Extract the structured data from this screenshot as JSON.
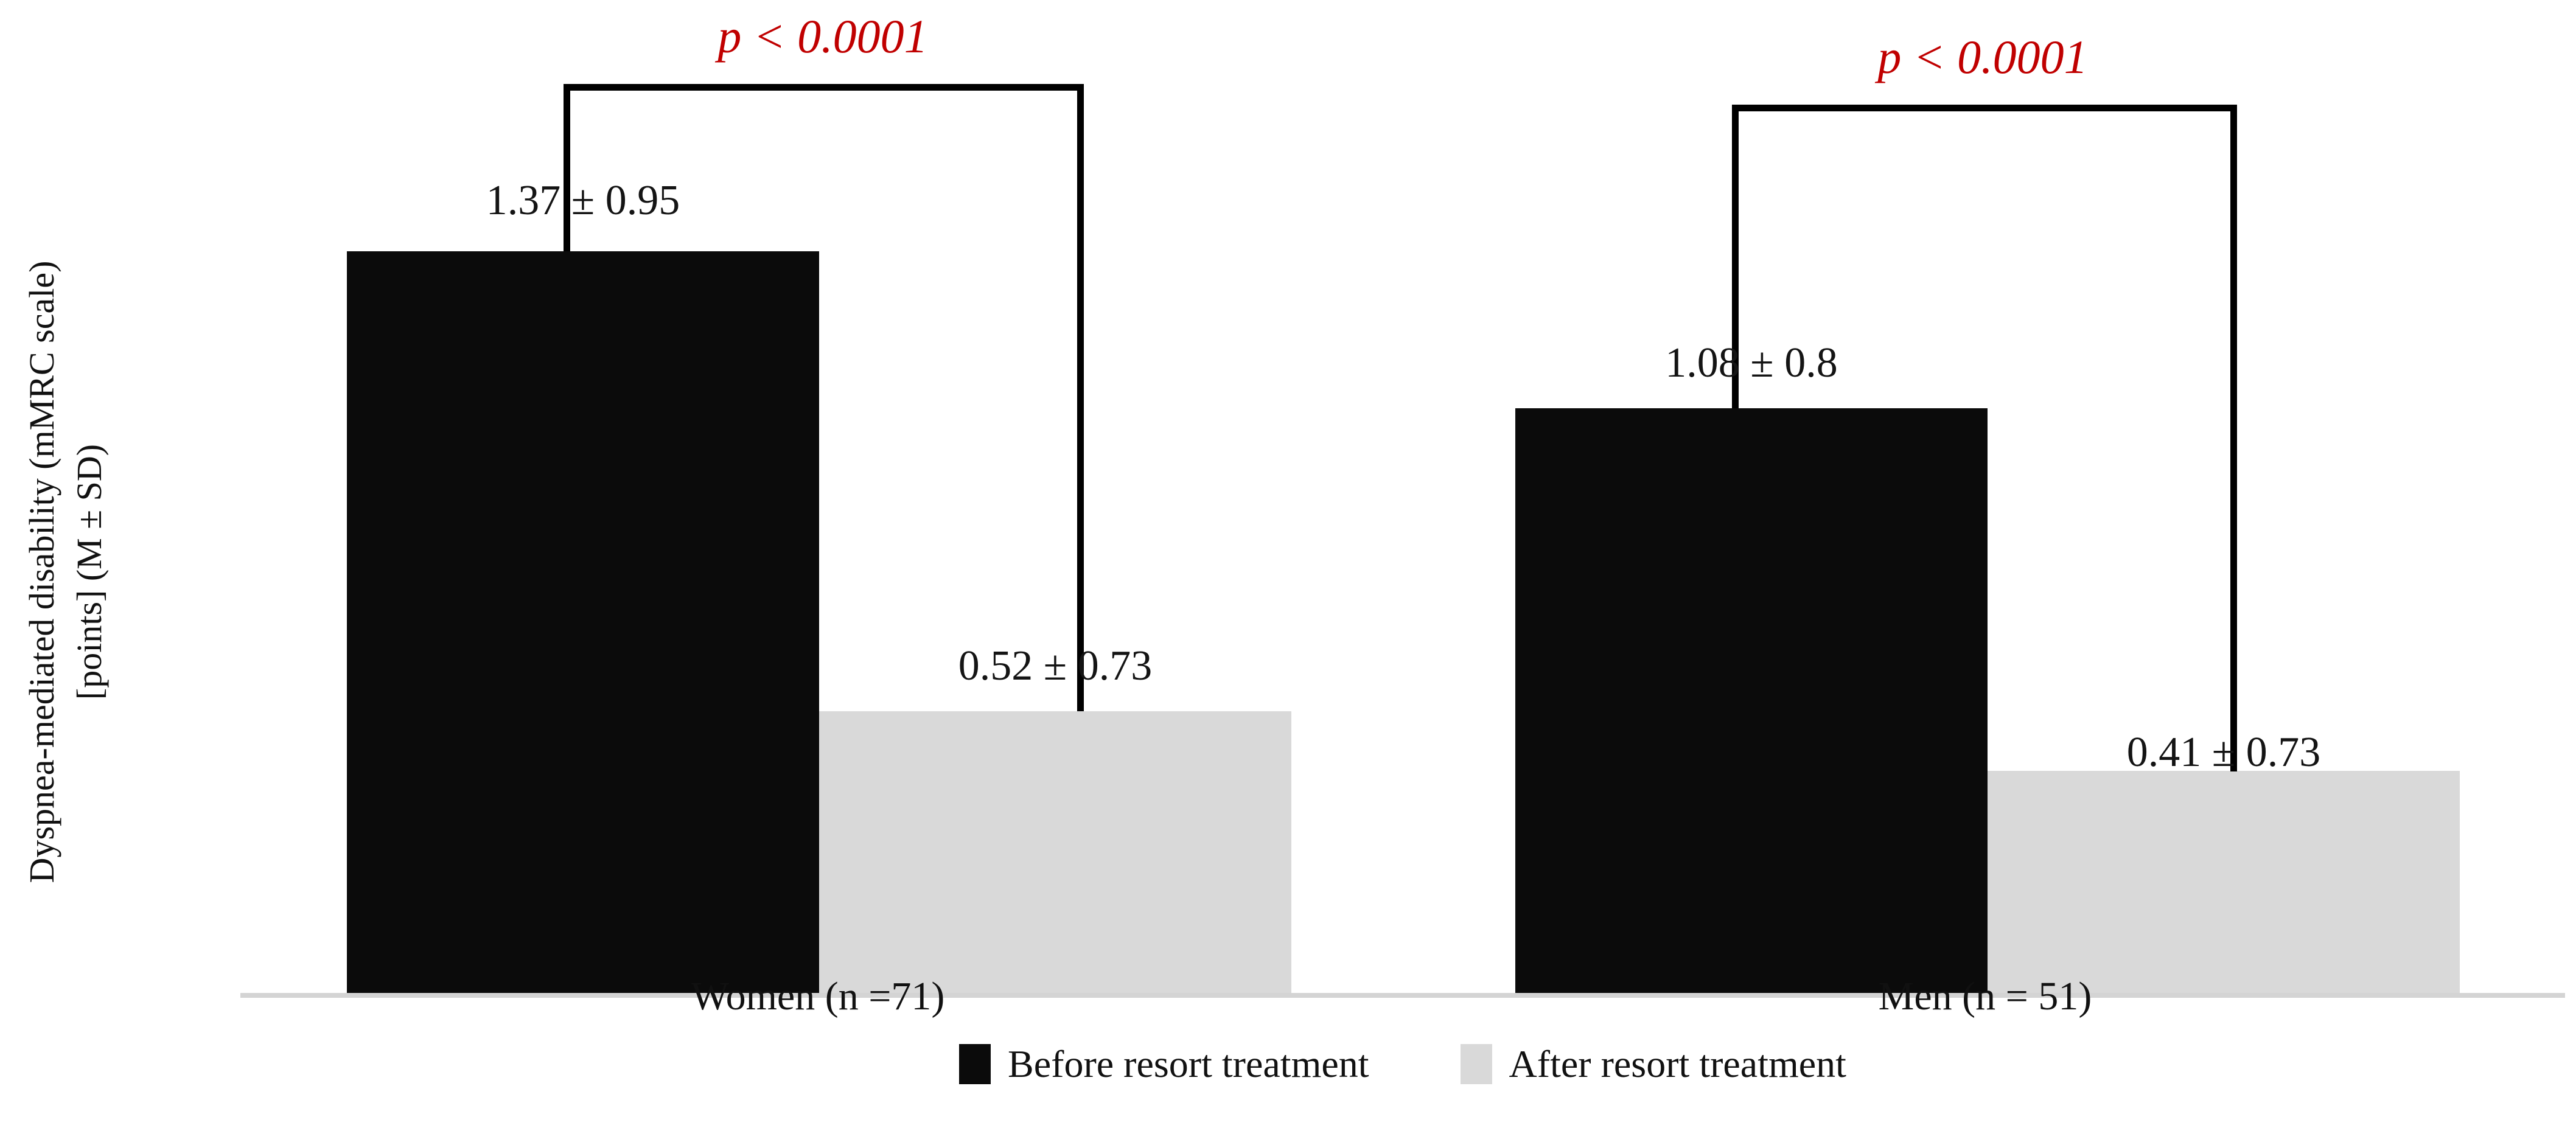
{
  "chart_data": {
    "type": "bar",
    "title": "",
    "categories": [
      "Women (n =71)",
      "Men (n = 51)"
    ],
    "series": [
      {
        "name": "Before resort treatment",
        "color": "#0b0b0b",
        "values": [
          1.37,
          1.08
        ],
        "sd": [
          0.95,
          0.8
        ],
        "labels": [
          "1.37 ± 0.95",
          "1.08 ± 0.8"
        ]
      },
      {
        "name": "After resort treatment",
        "color": "#d9d9d9",
        "values": [
          0.52,
          0.41
        ],
        "sd": [
          0.73,
          0.73
        ],
        "labels": [
          "0.52 ± 0.73",
          "0.41 ± 0.73"
        ]
      }
    ],
    "annotations": {
      "p_values": [
        "p < 0.0001",
        "p < 0.0001"
      ],
      "p_color": "#c00000"
    },
    "ylabel_line1": "Dyspnea-mediated disability (mMRC scale)",
    "ylabel_line2": "[points] (M ± SD)",
    "ylim": [
      0,
      1.83
    ],
    "grid": false,
    "legend_position": "bottom"
  }
}
